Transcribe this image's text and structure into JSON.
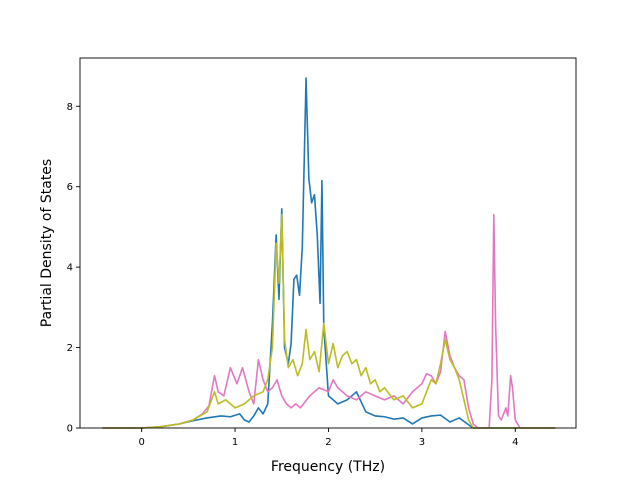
{
  "chart_data": {
    "type": "line",
    "title": "",
    "xlabel": "Frequency (THz)",
    "ylabel": "Partial Density of States",
    "xlim": [
      -0.66,
      4.65
    ],
    "ylim": [
      0,
      9.2
    ],
    "xticks": [
      0,
      1,
      2,
      3,
      4
    ],
    "yticks": [
      0,
      2,
      4,
      6,
      8
    ],
    "grid": false,
    "legend": "none",
    "series": [
      {
        "color": "#1f77b4",
        "points": [
          [
            -0.42,
            0
          ],
          [
            0,
            0
          ],
          [
            0.2,
            0.03
          ],
          [
            0.4,
            0.1
          ],
          [
            0.55,
            0.18
          ],
          [
            0.7,
            0.25
          ],
          [
            0.85,
            0.3
          ],
          [
            0.95,
            0.28
          ],
          [
            1.05,
            0.35
          ],
          [
            1.1,
            0.2
          ],
          [
            1.15,
            0.15
          ],
          [
            1.2,
            0.3
          ],
          [
            1.25,
            0.5
          ],
          [
            1.3,
            0.35
          ],
          [
            1.35,
            0.6
          ],
          [
            1.4,
            2.6
          ],
          [
            1.44,
            4.8
          ],
          [
            1.47,
            3.2
          ],
          [
            1.5,
            5.45
          ],
          [
            1.53,
            2.0
          ],
          [
            1.57,
            1.6
          ],
          [
            1.6,
            2.1
          ],
          [
            1.63,
            3.7
          ],
          [
            1.66,
            3.8
          ],
          [
            1.69,
            3.3
          ],
          [
            1.72,
            4.5
          ],
          [
            1.76,
            8.7
          ],
          [
            1.79,
            6.2
          ],
          [
            1.82,
            5.6
          ],
          [
            1.85,
            5.8
          ],
          [
            1.88,
            4.8
          ],
          [
            1.91,
            3.1
          ],
          [
            1.93,
            6.15
          ],
          [
            1.95,
            2.5
          ],
          [
            2.0,
            0.8
          ],
          [
            2.1,
            0.6
          ],
          [
            2.2,
            0.7
          ],
          [
            2.3,
            0.9
          ],
          [
            2.4,
            0.4
          ],
          [
            2.5,
            0.3
          ],
          [
            2.6,
            0.28
          ],
          [
            2.7,
            0.22
          ],
          [
            2.8,
            0.25
          ],
          [
            2.9,
            0.1
          ],
          [
            3.0,
            0.25
          ],
          [
            3.1,
            0.3
          ],
          [
            3.2,
            0.32
          ],
          [
            3.3,
            0.15
          ],
          [
            3.4,
            0.25
          ],
          [
            3.5,
            0.08
          ],
          [
            3.55,
            0
          ],
          [
            4.43,
            0
          ]
        ]
      },
      {
        "color": "#e377c2",
        "points": [
          [
            -0.42,
            0
          ],
          [
            0,
            0
          ],
          [
            0.2,
            0.03
          ],
          [
            0.4,
            0.1
          ],
          [
            0.55,
            0.2
          ],
          [
            0.65,
            0.35
          ],
          [
            0.72,
            0.55
          ],
          [
            0.78,
            1.3
          ],
          [
            0.82,
            0.9
          ],
          [
            0.88,
            0.8
          ],
          [
            0.95,
            1.5
          ],
          [
            1.02,
            1.1
          ],
          [
            1.08,
            1.5
          ],
          [
            1.15,
            0.9
          ],
          [
            1.2,
            0.6
          ],
          [
            1.25,
            1.7
          ],
          [
            1.3,
            1.2
          ],
          [
            1.35,
            0.9
          ],
          [
            1.4,
            1.0
          ],
          [
            1.45,
            1.2
          ],
          [
            1.5,
            0.8
          ],
          [
            1.55,
            0.6
          ],
          [
            1.6,
            0.5
          ],
          [
            1.65,
            0.6
          ],
          [
            1.7,
            0.5
          ],
          [
            1.8,
            0.8
          ],
          [
            1.9,
            1.0
          ],
          [
            2.0,
            0.9
          ],
          [
            2.05,
            1.2
          ],
          [
            2.1,
            1.0
          ],
          [
            2.2,
            0.8
          ],
          [
            2.3,
            0.7
          ],
          [
            2.4,
            0.9
          ],
          [
            2.5,
            0.8
          ],
          [
            2.6,
            0.7
          ],
          [
            2.7,
            0.8
          ],
          [
            2.8,
            0.6
          ],
          [
            2.9,
            0.9
          ],
          [
            3.0,
            1.1
          ],
          [
            3.05,
            1.35
          ],
          [
            3.1,
            1.3
          ],
          [
            3.15,
            1.1
          ],
          [
            3.2,
            1.4
          ],
          [
            3.25,
            2.4
          ],
          [
            3.3,
            1.8
          ],
          [
            3.35,
            1.5
          ],
          [
            3.4,
            1.3
          ],
          [
            3.45,
            1.2
          ],
          [
            3.5,
            0.5
          ],
          [
            3.55,
            0.1
          ],
          [
            3.6,
            0
          ],
          [
            3.72,
            0
          ],
          [
            3.75,
            1.2
          ],
          [
            3.77,
            5.3
          ],
          [
            3.79,
            2.5
          ],
          [
            3.82,
            0.3
          ],
          [
            3.85,
            0.2
          ],
          [
            3.9,
            0.5
          ],
          [
            3.92,
            0.3
          ],
          [
            3.95,
            1.3
          ],
          [
            3.97,
            1.0
          ],
          [
            4.0,
            0.2
          ],
          [
            4.05,
            0
          ],
          [
            4.43,
            0
          ]
        ]
      },
      {
        "color": "#bcbd22",
        "points": [
          [
            -0.42,
            0
          ],
          [
            0,
            0
          ],
          [
            0.2,
            0.03
          ],
          [
            0.4,
            0.1
          ],
          [
            0.55,
            0.2
          ],
          [
            0.7,
            0.4
          ],
          [
            0.78,
            0.9
          ],
          [
            0.82,
            0.6
          ],
          [
            0.9,
            0.7
          ],
          [
            1.0,
            0.5
          ],
          [
            1.1,
            0.6
          ],
          [
            1.2,
            0.8
          ],
          [
            1.3,
            0.9
          ],
          [
            1.35,
            1.2
          ],
          [
            1.4,
            2.0
          ],
          [
            1.44,
            4.6
          ],
          [
            1.47,
            3.6
          ],
          [
            1.5,
            5.3
          ],
          [
            1.53,
            2.2
          ],
          [
            1.57,
            1.5
          ],
          [
            1.62,
            1.7
          ],
          [
            1.67,
            1.3
          ],
          [
            1.72,
            1.6
          ],
          [
            1.76,
            2.45
          ],
          [
            1.8,
            1.7
          ],
          [
            1.85,
            1.9
          ],
          [
            1.9,
            1.4
          ],
          [
            1.95,
            2.6
          ],
          [
            2.0,
            1.6
          ],
          [
            2.05,
            2.1
          ],
          [
            2.1,
            1.5
          ],
          [
            2.15,
            1.8
          ],
          [
            2.2,
            1.9
          ],
          [
            2.25,
            1.6
          ],
          [
            2.3,
            1.7
          ],
          [
            2.35,
            1.3
          ],
          [
            2.4,
            1.5
          ],
          [
            2.45,
            1.1
          ],
          [
            2.5,
            1.2
          ],
          [
            2.55,
            0.9
          ],
          [
            2.6,
            1.0
          ],
          [
            2.7,
            0.7
          ],
          [
            2.8,
            0.8
          ],
          [
            2.9,
            0.5
          ],
          [
            3.0,
            0.6
          ],
          [
            3.05,
            0.9
          ],
          [
            3.1,
            1.2
          ],
          [
            3.15,
            1.1
          ],
          [
            3.2,
            1.6
          ],
          [
            3.25,
            2.2
          ],
          [
            3.3,
            1.7
          ],
          [
            3.35,
            1.5
          ],
          [
            3.4,
            1.2
          ],
          [
            3.45,
            0.7
          ],
          [
            3.5,
            0.2
          ],
          [
            3.55,
            0
          ],
          [
            4.43,
            0
          ]
        ]
      }
    ]
  }
}
